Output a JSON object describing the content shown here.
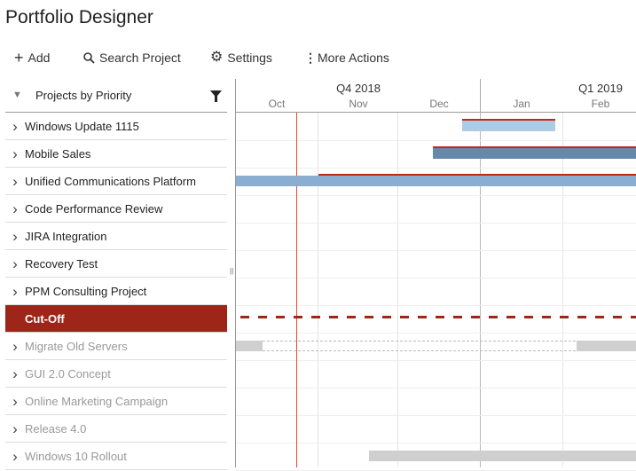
{
  "title": "Portfolio Designer",
  "toolbar": {
    "add": "Add",
    "search": "Search Project",
    "settings": "Settings",
    "more": "More Actions"
  },
  "panel": {
    "header": "Projects by Priority"
  },
  "projects": [
    {
      "name": "Windows Update 1115"
    },
    {
      "name": "Mobile Sales"
    },
    {
      "name": "Unified Communications Platform"
    },
    {
      "name": "Code Performance Review"
    },
    {
      "name": "JIRA Integration"
    },
    {
      "name": "Recovery Test"
    },
    {
      "name": "PPM Consulting Project"
    },
    {
      "name": "Cut-Off"
    },
    {
      "name": "Migrate Old Servers"
    },
    {
      "name": "GUI 2.0 Concept"
    },
    {
      "name": "Online Marketing Campaign"
    },
    {
      "name": "Release 4.0"
    },
    {
      "name": "Windows 10 Rollout"
    }
  ],
  "timeline": {
    "quarters": [
      "Q4 2018",
      "Q1 2019"
    ],
    "months": [
      "Oct",
      "Nov",
      "Dec",
      "Jan",
      "Feb"
    ]
  },
  "colors": {
    "cutoff": "#9e2619",
    "today": "#e8472f",
    "critical": "#c0281c",
    "bar_light": "#aecbe6",
    "bar_dark": "#6688aa",
    "bar_mid": "#8badd0",
    "bar_inactive": "#cfcfcf"
  }
}
